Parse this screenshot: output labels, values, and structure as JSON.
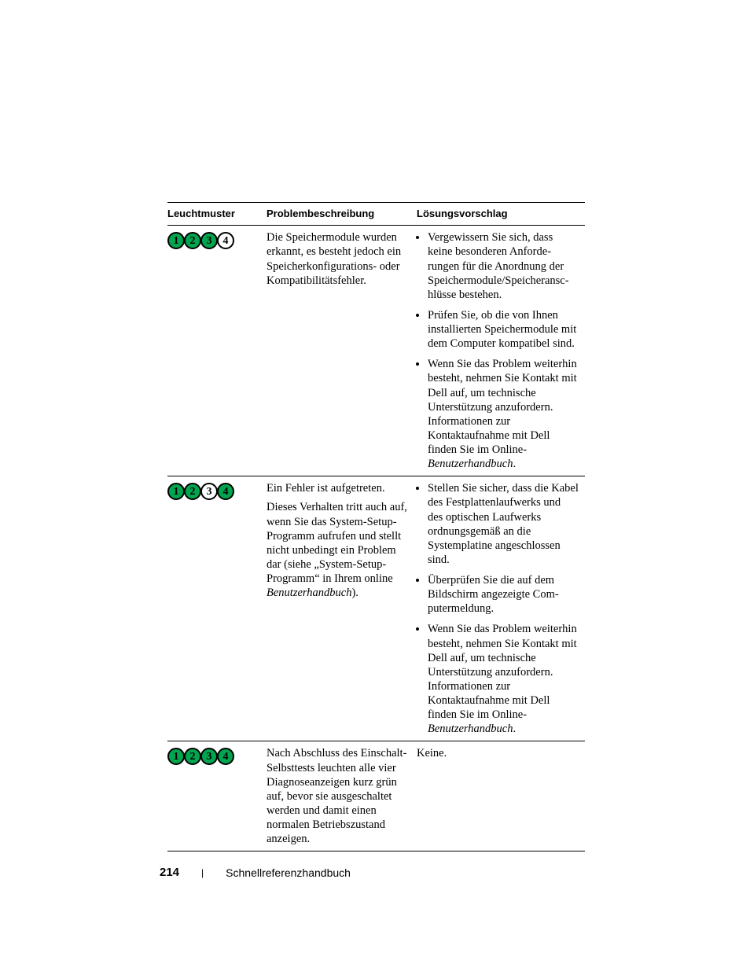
{
  "colors": {
    "led_on": "#00a64f",
    "led_off": "#ffffff",
    "rule": "#000000",
    "text": "#000000",
    "background": "#ffffff"
  },
  "headers": {
    "light": "Leuchtmuster",
    "problem": "Problembeschreibung",
    "solution": "Lösungsvorschlag"
  },
  "rows": [
    {
      "leds": [
        true,
        true,
        true,
        false
      ],
      "problem": "Die Speichermodule wurden erkannt, es besteht jedoch ein Speicherkonfigurations- oder Kompatibilitätsfehler.",
      "solutions": [
        "Vergewissern Sie sich, dass keine besonderen Anforde­rungen für die Anordnung der Speichermodule/Speicheransc­hlüsse bestehen.",
        "Prüfen Sie, ob die von Ihnen installierten Speichermodule mit dem Computer kompa­tibel sind.",
        "Wenn Sie das Problem wei­terhin besteht, nehmen Sie Kontakt mit Dell auf, um technische Unterstützung anzufordern. Informationen zur Kontaktaufnahme mit Dell finden Sie im Online-"
      ],
      "solution3_tail_italic": "Benutzerhandbuch",
      "solution3_tail_plain": "."
    },
    {
      "leds": [
        true,
        true,
        false,
        true
      ],
      "problem_line1": "Ein Fehler ist aufgetreten.",
      "problem_block2a": "Dieses Verhalten tritt auch auf, wenn Sie das System-Setup-Programm aufrufen und stellt nicht unbedingt ein Problem dar (siehe „System-Setup-Programm“ in Ihrem online ",
      "problem_block2_italic": "Benutzerhandbuch",
      "problem_block2b": ").",
      "solutions": [
        "Stellen Sie sicher, dass die Kabel des Festplattenlauf­werks und des optischen Lauf­werks ordnungsgemäß an die Systemplatine angeschlossen sind.",
        "Überprüfen Sie die auf dem Bildschirm angezeigte Com­putermeldung.",
        "Wenn Sie das Problem wei­terhin besteht, nehmen Sie Kontakt mit Dell auf, um technische Unterstützung anzufordern. Informationen zur Kontaktaufnahme mit Dell finden Sie im Online-"
      ],
      "solution3_tail_italic": "Benutzerhandbuch",
      "solution3_tail_plain": "."
    },
    {
      "leds": [
        true,
        true,
        true,
        true
      ],
      "problem": "Nach Abschluss des Einschalt-Selbsttests leuchten alle vier Diagnoseanzeigen kurz grün auf, bevor sie ausgeschaltet werden und damit einen normalen Betriebszustand anzeigen.",
      "solution_plain": "Keine."
    }
  ],
  "footer": {
    "page": "214",
    "separator": "|",
    "title": "Schnellreferenzhandbuch"
  }
}
